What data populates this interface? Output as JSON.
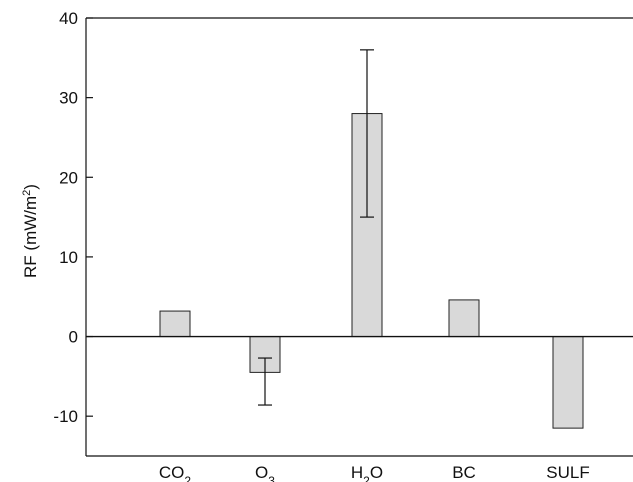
{
  "chart_data": {
    "type": "bar",
    "categories": [
      "CO2",
      "O3",
      "H2O",
      "BC",
      "SULF"
    ],
    "category_labels": [
      {
        "base": "CO",
        "sub": "2",
        "after": ""
      },
      {
        "base": "O",
        "sub": "3",
        "after": ""
      },
      {
        "base": "H",
        "sub": "2",
        "after": "O"
      },
      {
        "base": "BC",
        "sub": "",
        "after": ""
      },
      {
        "base": "SULF",
        "sub": "",
        "after": ""
      }
    ],
    "values": [
      3.2,
      -4.5,
      28,
      4.6,
      -11.5
    ],
    "error_bars": [
      null,
      {
        "low": -8.6,
        "high": -2.7
      },
      {
        "low": 15,
        "high": 36
      },
      null,
      null
    ],
    "ylabel": {
      "text": "RF (mW/m",
      "sup": "2",
      "after": ")"
    },
    "xlabel": "",
    "ylim": [
      -15,
      40
    ],
    "yticks": [
      -10,
      0,
      10,
      20,
      30,
      40
    ],
    "ytick_labels": [
      "-10",
      "0",
      "10",
      "20",
      "30",
      "40"
    ],
    "zero_line": true,
    "grid": false,
    "bar_color": "#d9d9d9",
    "bar_stroke": "#222222"
  }
}
